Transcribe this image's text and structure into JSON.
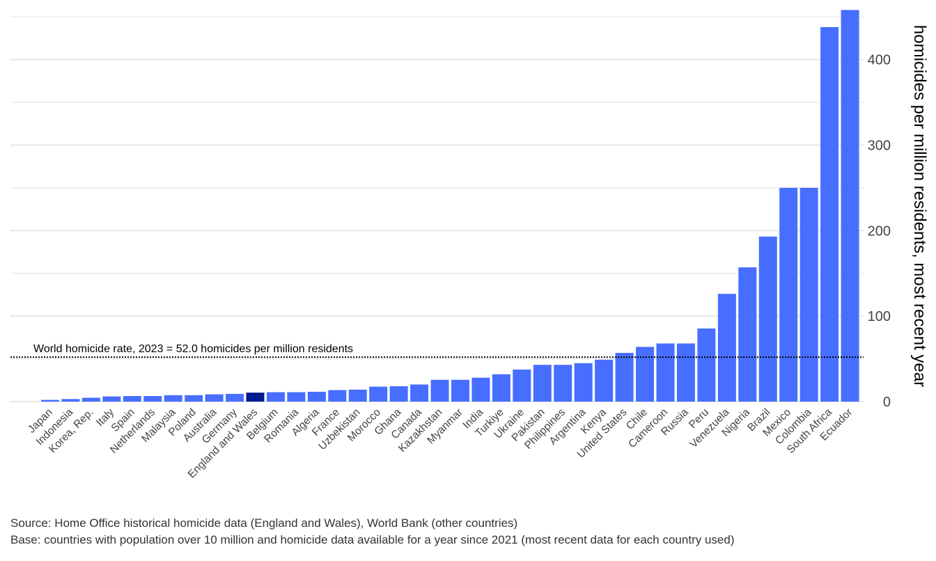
{
  "chart_data": {
    "type": "bar",
    "title": "",
    "xlabel": "",
    "ylabel": "homicides per million residents, most recent year",
    "ylim": [
      0,
      458
    ],
    "yticks": [
      0,
      100,
      200,
      300,
      400
    ],
    "grid": true,
    "axis_position": "right",
    "colors": {
      "default": "#476EFF",
      "highlight": "#001A8F",
      "grid": "#E6E6E6",
      "reference": "#000000"
    },
    "highlight": "England and Wales",
    "categories": [
      "Japan",
      "Indonesia",
      "Korea, Rep.",
      "Italy",
      "Spain",
      "Netherlands",
      "Malaysia",
      "Poland",
      "Australia",
      "Germany",
      "England and Wales",
      "Belgium",
      "Romania",
      "Algeria",
      "France",
      "Uzbekistan",
      "Morocco",
      "Ghana",
      "Canada",
      "Kazakhstan",
      "Myanmar",
      "India",
      "Turkiye",
      "Ukraine",
      "Pakistan",
      "Philippines",
      "Argentina",
      "Kenya",
      "United States",
      "Chile",
      "Cameroon",
      "Russia",
      "Peru",
      "Venezuela",
      "Nigeria",
      "Brazil",
      "Mexico",
      "Colombia",
      "South Africa",
      "Ecuador"
    ],
    "values": [
      2,
      3,
      4.5,
      6,
      6.5,
      6.5,
      7.5,
      7.5,
      8.5,
      9,
      10.5,
      11,
      11,
      11.5,
      13.5,
      14,
      17.5,
      18,
      20,
      25.5,
      25.5,
      28,
      32,
      37.5,
      43,
      43,
      45,
      49,
      57,
      64,
      68,
      68,
      85.5,
      126,
      157,
      193,
      250,
      250,
      438,
      458
    ],
    "reference_line": {
      "value": 52.0,
      "label": "World homicide rate, 2023 = 52.0 homicides per million residents"
    }
  },
  "source": "Source: Home Office historical homicide data (England and Wales), World Bank (other countries)",
  "base": "Base: countries with population over 10 million and homicide data available for a year since 2021 (most recent data for each country used)"
}
